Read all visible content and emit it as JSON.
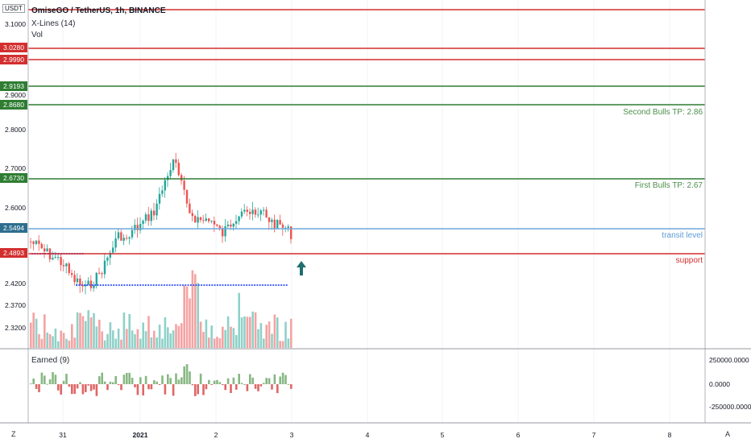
{
  "header": {
    "currency": "USDT",
    "title": "OmiseGO / TetherUS, 1h, BINANCE",
    "indicator1": "X-Lines (14)",
    "indicator2": "Vol",
    "indicator3": "Earned (9)"
  },
  "price_axis": {
    "ticks": [
      "3.1000",
      "2.9000",
      "2.8000",
      "2.7000",
      "2.6000",
      "2.4200",
      "2.3700",
      "2.3200"
    ],
    "price_labels": [
      {
        "value": "3.0280",
        "color": "#d32f2f"
      },
      {
        "value": "2.9990",
        "color": "#d32f2f"
      },
      {
        "value": "2.9193",
        "color": "#2e7d32"
      },
      {
        "value": "2.8680",
        "color": "#2e7d32"
      },
      {
        "value": "2.6730",
        "color": "#2e7d32"
      },
      {
        "value": "2.5494",
        "color": "#2d6e8e"
      },
      {
        "value": "2.4893",
        "color": "#d32f2f"
      }
    ]
  },
  "horizontal_lines": [
    {
      "color": "#d32f2f"
    },
    {
      "color": "#d32f2f"
    },
    {
      "color": "#d32f2f"
    },
    {
      "color": "#2e7d32"
    },
    {
      "color": "#2e7d32",
      "label": "Second Bulls TP: 2.86"
    },
    {
      "color": "#2e7d32",
      "label": "First Bulls TP: 2.67"
    },
    {
      "color": "#6fa8dc",
      "label": "transit level"
    },
    {
      "color": "#d32f2f",
      "label": "support"
    }
  ],
  "time_axis": {
    "ticks": [
      "31",
      "2021",
      "2",
      "3",
      "4",
      "5",
      "6",
      "7",
      "8"
    ]
  },
  "sub_axis": {
    "ticks": [
      "250000.0000",
      "0.0000",
      "-250000.0000"
    ]
  },
  "corner_buttons": {
    "left": "Z",
    "right": "A"
  },
  "colors": {
    "up": "#26a69a",
    "down": "#ef5350",
    "vol_up": "#8fd1c8",
    "vol_down": "#f4a3a3",
    "earn_up": "#87b883",
    "earn_down": "#e06666",
    "xline": "#3d5afe",
    "arrow": "#1f6e70"
  }
}
